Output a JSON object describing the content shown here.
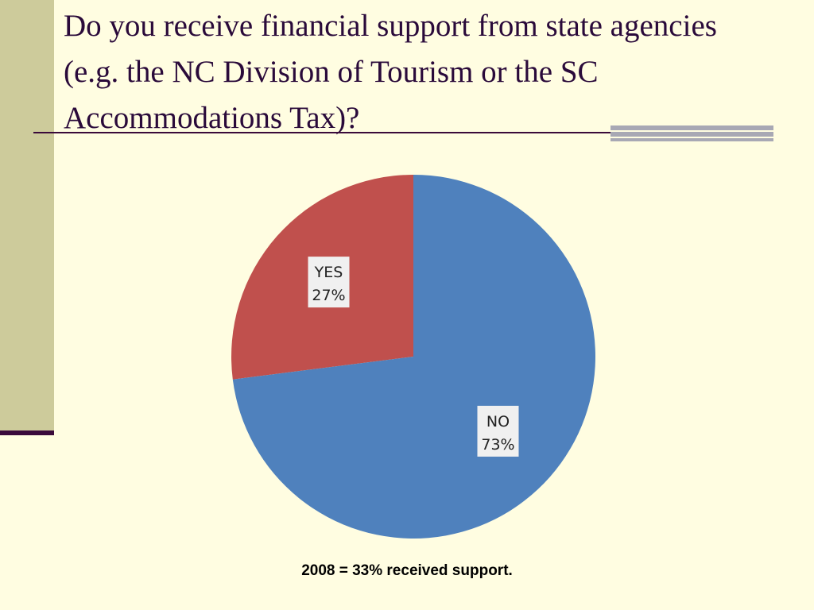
{
  "slide": {
    "title": "Do you receive financial support from state agencies (e.g. the NC Division of Tourism or the SC Accommodations Tax)?",
    "footnote": "2008 = 33% received support."
  },
  "chart_data": {
    "type": "pie",
    "title": "",
    "legend": "none",
    "slices": [
      {
        "label": "YES",
        "value": 27,
        "value_label": "27%",
        "color": "#c0504d"
      },
      {
        "label": "NO",
        "value": 73,
        "value_label": "73%",
        "color": "#4f81bd"
      }
    ]
  }
}
